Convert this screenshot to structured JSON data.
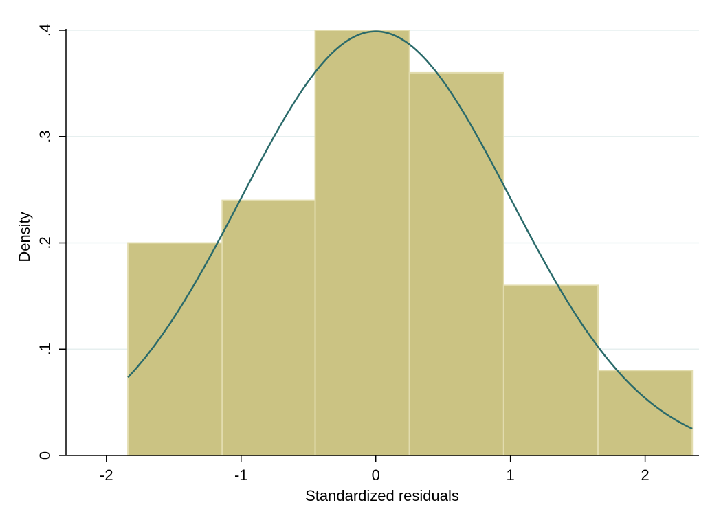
{
  "chart_data": {
    "type": "bar",
    "xlabel": "Standardized residuals",
    "ylabel": "Density",
    "xlim": [
      -2.3,
      2.4
    ],
    "ylim": [
      0,
      0.4
    ],
    "x_ticks": [
      {
        "value": -2,
        "label": "-2"
      },
      {
        "value": -1,
        "label": "-1"
      },
      {
        "value": 0,
        "label": "0"
      },
      {
        "value": 1,
        "label": "1"
      },
      {
        "value": 2,
        "label": "2"
      }
    ],
    "y_ticks": [
      {
        "value": 0,
        "label": "0"
      },
      {
        "value": 0.1,
        "label": ".1"
      },
      {
        "value": 0.2,
        "label": ".2"
      },
      {
        "value": 0.3,
        "label": ".3"
      },
      {
        "value": 0.4,
        "label": ".4"
      }
    ],
    "grid": "horizontal",
    "bins": [
      {
        "x0": -1.84,
        "x1": -1.14,
        "density": 0.2
      },
      {
        "x0": -1.14,
        "x1": -0.45,
        "density": 0.24
      },
      {
        "x0": -0.45,
        "x1": 0.25,
        "density": 0.4
      },
      {
        "x0": 0.25,
        "x1": 0.95,
        "density": 0.36
      },
      {
        "x0": 0.95,
        "x1": 1.65,
        "density": 0.16
      },
      {
        "x0": 1.65,
        "x1": 2.35,
        "density": 0.08
      }
    ],
    "overlay": {
      "type": "line",
      "curve": "normal density",
      "mean": 0,
      "sd": 1,
      "x_range": [
        -1.84,
        2.35
      ]
    },
    "colors": {
      "bar_fill": "#cbc383",
      "bar_edge": "#e2dcae",
      "curve": "#2a6a6a",
      "grid": "#e6efef"
    }
  }
}
